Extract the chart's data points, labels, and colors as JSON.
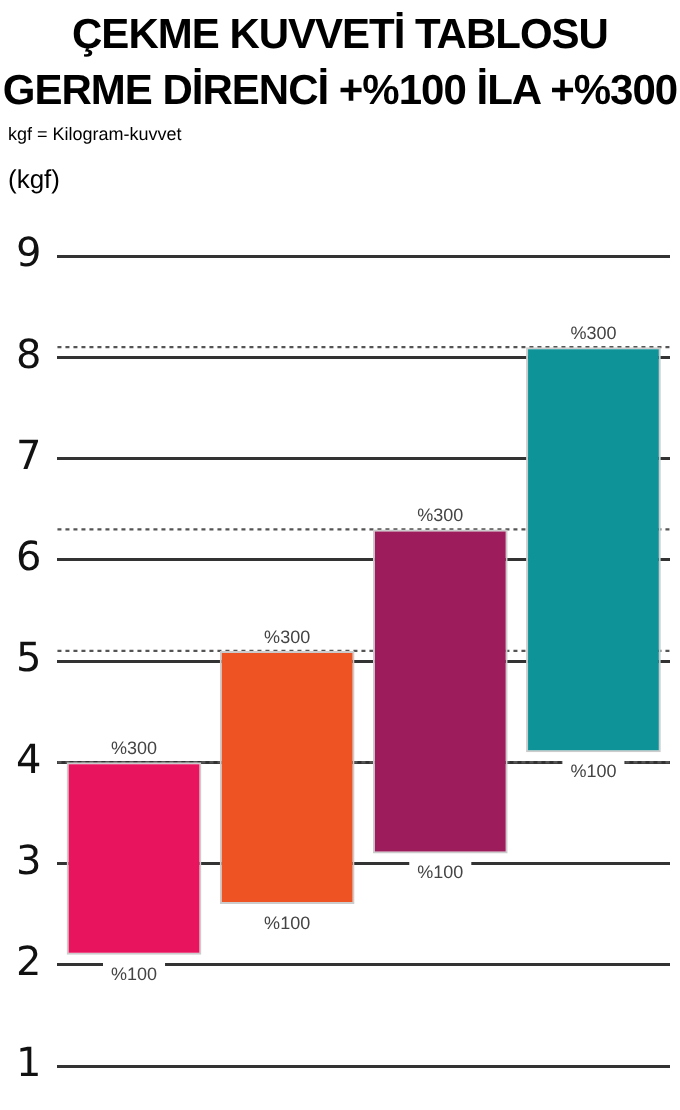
{
  "chart_data": {
    "type": "bar",
    "title": "ÇEKME KUVVETİ TABLOSU\nGERME DİRENCİ +%100 İLA +%300",
    "subtitle": "kgf = Kilogram-kuvvet",
    "ylabel": "(kgf)",
    "categories": [
      null,
      null,
      null,
      null
    ],
    "base": [
      2.1,
      2.6,
      3.1,
      4.1
    ],
    "values": [
      1.9,
      2.5,
      3.2,
      4.0
    ],
    "colors": [
      "#e8145e",
      "#ee5323",
      "#9c1c5c",
      "#0e9399"
    ],
    "annotations": [
      {
        "text": "%300",
        "y": 4.0
      },
      {
        "text": "%300",
        "y": 5.1
      },
      {
        "text": "%300",
        "y": 6.3
      },
      {
        "text": "%300",
        "y": 8.1
      },
      {
        "text": "%100",
        "y": 2.1
      },
      {
        "text": "%100",
        "y": 2.6
      },
      {
        "text": "%100",
        "y": 3.1
      },
      {
        "text": "%100",
        "y": 4.1
      }
    ],
    "ref_lines": [
      {
        "axis": "y",
        "value": 4.0,
        "color": "#555555",
        "line_style": "dotted"
      },
      {
        "axis": "y",
        "value": 5.1,
        "color": "#555555",
        "line_style": "dotted"
      },
      {
        "axis": "y",
        "value": 6.3,
        "color": "#555555",
        "line_style": "dotted"
      },
      {
        "axis": "y",
        "value": 8.1,
        "color": "#555555",
        "line_style": "dotted"
      }
    ],
    "ylim": [
      1,
      9
    ],
    "yticks": [
      1,
      2,
      3,
      4,
      5,
      6,
      7,
      8,
      9
    ],
    "grid": "y",
    "legend": false,
    "tick_labels": "y"
  }
}
